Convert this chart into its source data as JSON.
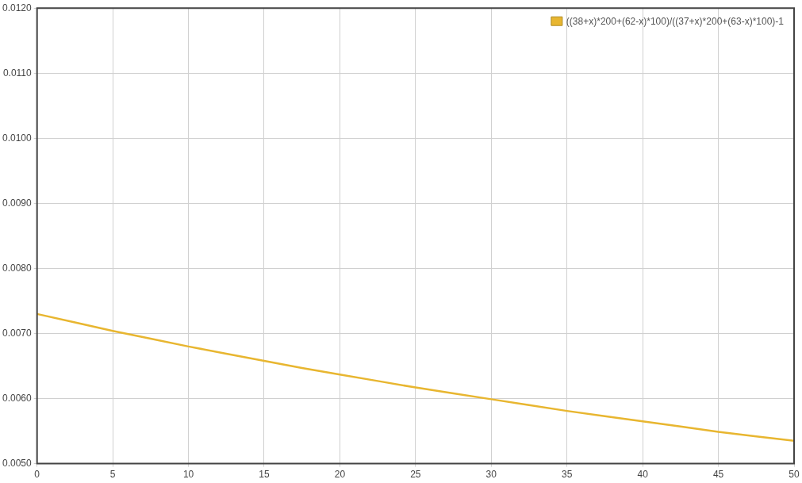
{
  "chart_data": {
    "type": "line",
    "x": [
      0,
      2.5,
      5,
      7.5,
      10,
      12.5,
      15,
      17.5,
      20,
      22.5,
      25,
      27.5,
      30,
      32.5,
      35,
      37.5,
      40,
      42.5,
      45,
      47.5,
      50
    ],
    "series": [
      {
        "name": "((38+x)*200+(62-x)*100)/((37+x)*200+(63-x)*100)-1",
        "color": "#e8b630",
        "values": [
          0.0073,
          0.00717,
          0.00704,
          0.00692,
          0.0068,
          0.00669,
          0.00658,
          0.00647,
          0.00637,
          0.00627,
          0.00617,
          0.00608,
          0.00599,
          0.0059,
          0.00581,
          0.00573,
          0.00565,
          0.00557,
          0.00549,
          0.00542,
          0.00535
        ]
      }
    ],
    "xlim": [
      0,
      50
    ],
    "xticks": [
      0,
      5,
      10,
      15,
      20,
      25,
      30,
      35,
      40,
      45,
      50
    ],
    "ylim": [
      0.005,
      0.012
    ],
    "yticks": [
      {
        "value": 0.005,
        "label": "0.0050"
      },
      {
        "value": 0.006,
        "label": "0.0060"
      },
      {
        "value": 0.007,
        "label": "0.0070"
      },
      {
        "value": 0.008,
        "label": "0.0080"
      },
      {
        "value": 0.009,
        "label": "0.0090"
      },
      {
        "value": 0.01,
        "label": "0.0100"
      },
      {
        "value": 0.011,
        "label": "0.0110"
      },
      {
        "value": 0.012,
        "label": "0.0120"
      }
    ],
    "grid": true,
    "legend": "top right",
    "marker": "none",
    "line_style": "solid"
  }
}
